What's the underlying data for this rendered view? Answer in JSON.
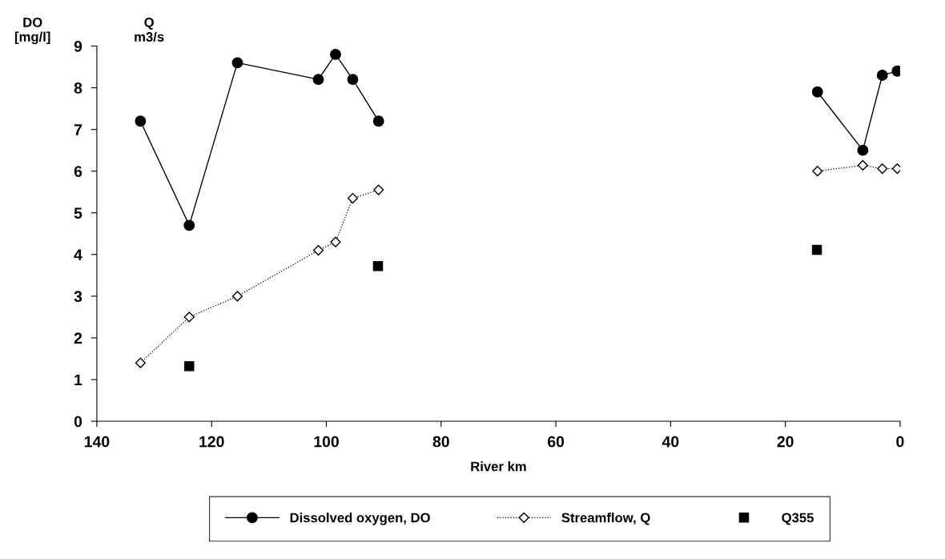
{
  "chart_data": {
    "type": "line",
    "xlabel": "River km",
    "ylabel": "DO\n[mg/l]",
    "annotations": [
      "Q\nm3/s"
    ],
    "xlim": [
      140,
      0
    ],
    "xticks": [
      140,
      120,
      100,
      80,
      60,
      40,
      20,
      0
    ],
    "ylim": [
      0,
      9
    ],
    "yticks": [
      0,
      1,
      2,
      3,
      4,
      5,
      6,
      7,
      8,
      9
    ],
    "grid": false,
    "legend": "bottom",
    "series": [
      {
        "name": "Dissolved oxygen, DO",
        "color": "#000000",
        "marker": "circle",
        "line_style": "solid",
        "x": [
          132.4,
          123.9,
          115.5,
          101.4,
          98.4,
          95.4,
          90.9,
          50,
          14.4,
          6.5,
          3.1,
          0.5
        ],
        "values": [
          7.2,
          4.7,
          8.6,
          8.2,
          8.8,
          8.2,
          7.2,
          null,
          7.9,
          6.5,
          8.3,
          8.4
        ]
      },
      {
        "name": "Streamflow, Q",
        "color": "#000000",
        "marker": "diamond",
        "line_style": "dotted",
        "x": [
          132.4,
          123.9,
          115.5,
          101.4,
          98.4,
          95.4,
          90.9,
          50,
          14.4,
          6.5,
          3.1,
          0.5
        ],
        "values": [
          1.4,
          2.5,
          3.0,
          4.1,
          4.3,
          5.35,
          5.55,
          null,
          6.0,
          6.14,
          6.06,
          6.06
        ]
      },
      {
        "name": "Q355",
        "color": "#000000",
        "type": "scatter",
        "marker": "square",
        "x": [
          123.9,
          91.0,
          14.5
        ],
        "values": [
          1.32,
          3.72,
          4.11
        ]
      }
    ]
  }
}
